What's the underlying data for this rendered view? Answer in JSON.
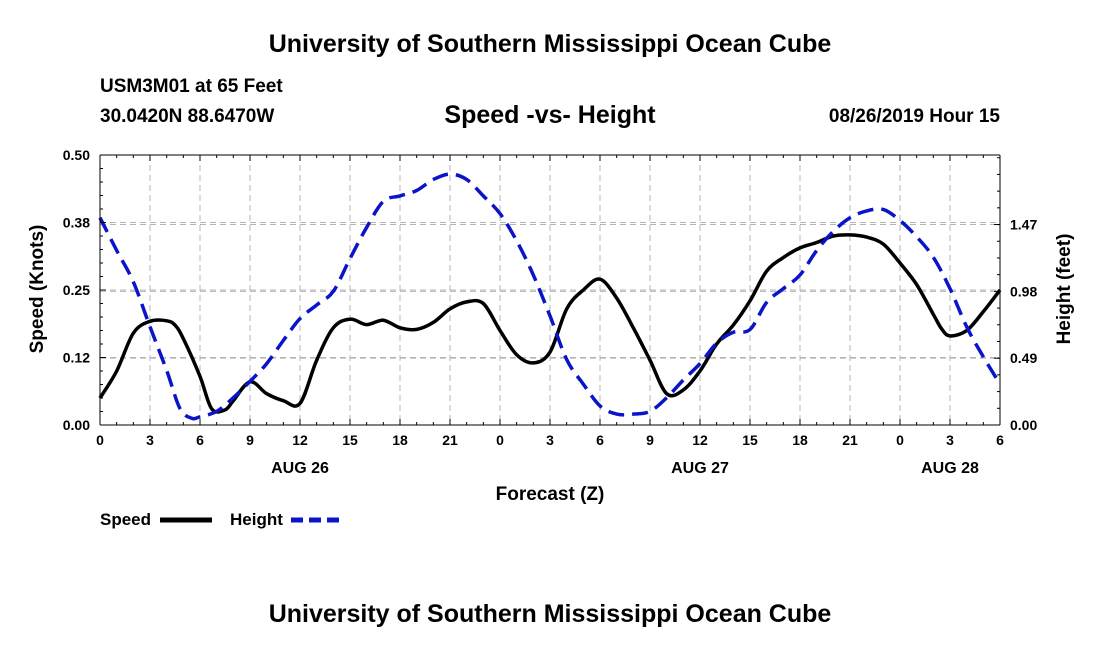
{
  "header": {
    "title": "University of Southern Mississippi Ocean Cube",
    "station": "USM3M01 at 65 Feet",
    "coordinates": "30.0420N 88.6470W",
    "subtitle": "Speed -vs- Height",
    "timestamp": "08/26/2019 Hour 15"
  },
  "footer": {
    "title": "University of Southern Mississippi Ocean Cube"
  },
  "colors": {
    "speed": "#000000",
    "height": "#0a14c8",
    "grid": "#b4b4b4"
  },
  "chart_data": {
    "type": "line",
    "title": "Speed -vs- Height",
    "xlabel": "Forecast (Z)",
    "ylabel": "Speed (Knots)",
    "y2label": "Height (feet)",
    "xlim": [
      0,
      54
    ],
    "ylim": [
      0,
      0.5
    ],
    "y2lim": [
      0,
      1.98
    ],
    "x_ticks": [
      0,
      3,
      6,
      9,
      12,
      15,
      18,
      21,
      24,
      27,
      30,
      33,
      36,
      39,
      42,
      45,
      48,
      51,
      54
    ],
    "x_tick_labels": [
      "0",
      "3",
      "6",
      "9",
      "12",
      "15",
      "18",
      "21",
      "0",
      "3",
      "6",
      "9",
      "12",
      "15",
      "18",
      "21",
      "0",
      "3",
      "6"
    ],
    "y_ticks": [
      0,
      0.125,
      0.25,
      0.375,
      0.5
    ],
    "y_tick_labels": [
      "0.00",
      "0.12",
      "0.25",
      "0.38",
      "0.50"
    ],
    "y2_ticks": [
      0,
      0.49,
      0.98,
      1.47
    ],
    "y2_tick_labels": [
      "0.00",
      "0.49",
      "0.98",
      "1.47"
    ],
    "date_labels": [
      {
        "x": 12,
        "label": "AUG 26"
      },
      {
        "x": 36,
        "label": "AUG 27"
      },
      {
        "x": 51,
        "label": "AUG 28"
      }
    ],
    "grid": true,
    "series": [
      {
        "name": "Speed",
        "axis": "left",
        "style": "solid",
        "x": [
          0,
          1,
          2,
          3,
          4,
          4.5,
          5,
          6,
          6.7,
          7.5,
          8,
          9,
          10,
          11,
          12,
          13,
          14,
          15,
          16,
          17,
          18,
          19,
          20,
          21,
          22,
          23,
          24,
          25,
          26,
          27,
          28,
          29,
          30,
          31,
          32,
          33,
          34,
          35,
          36,
          37,
          38,
          39,
          40,
          41,
          42,
          43,
          44,
          45,
          46,
          47,
          48,
          49,
          50,
          50.5,
          51,
          52,
          53,
          54
        ],
        "y": [
          0.05,
          0.1,
          0.17,
          0.192,
          0.193,
          0.185,
          0.16,
          0.09,
          0.03,
          0.028,
          0.045,
          0.08,
          0.058,
          0.045,
          0.04,
          0.12,
          0.18,
          0.196,
          0.186,
          0.194,
          0.18,
          0.177,
          0.19,
          0.215,
          0.228,
          0.225,
          0.175,
          0.13,
          0.115,
          0.135,
          0.215,
          0.25,
          0.27,
          0.235,
          0.18,
          0.12,
          0.058,
          0.065,
          0.1,
          0.15,
          0.185,
          0.23,
          0.285,
          0.31,
          0.328,
          0.338,
          0.35,
          0.352,
          0.348,
          0.335,
          0.3,
          0.26,
          0.205,
          0.178,
          0.165,
          0.175,
          0.21,
          0.25
        ]
      },
      {
        "name": "Height",
        "axis": "right",
        "style": "dashed",
        "x": [
          0,
          1,
          2,
          3,
          4,
          4.8,
          5.5,
          6,
          7,
          8,
          9,
          10,
          11,
          12,
          13,
          14,
          15,
          16,
          17,
          18,
          19,
          20,
          21,
          22,
          23,
          24,
          25,
          26,
          27,
          28,
          29,
          30,
          31,
          32,
          33,
          34,
          35,
          36,
          37,
          38,
          39,
          40,
          41,
          42,
          43,
          44,
          45,
          46,
          47,
          48,
          49,
          50,
          51,
          52,
          53,
          54
        ],
        "y": [
          1.52,
          1.28,
          1.05,
          0.72,
          0.4,
          0.12,
          0.05,
          0.06,
          0.1,
          0.2,
          0.32,
          0.45,
          0.62,
          0.78,
          0.88,
          0.98,
          1.22,
          1.45,
          1.64,
          1.68,
          1.72,
          1.8,
          1.84,
          1.8,
          1.68,
          1.55,
          1.35,
          1.1,
          0.8,
          0.48,
          0.3,
          0.14,
          0.08,
          0.08,
          0.1,
          0.2,
          0.33,
          0.45,
          0.6,
          0.68,
          0.7,
          0.9,
          1.0,
          1.1,
          1.28,
          1.42,
          1.52,
          1.57,
          1.58,
          1.5,
          1.38,
          1.23,
          1.0,
          0.72,
          0.5,
          0.3
        ]
      }
    ]
  },
  "legend": {
    "items": [
      {
        "label": "Speed"
      },
      {
        "label": "Height"
      }
    ]
  }
}
